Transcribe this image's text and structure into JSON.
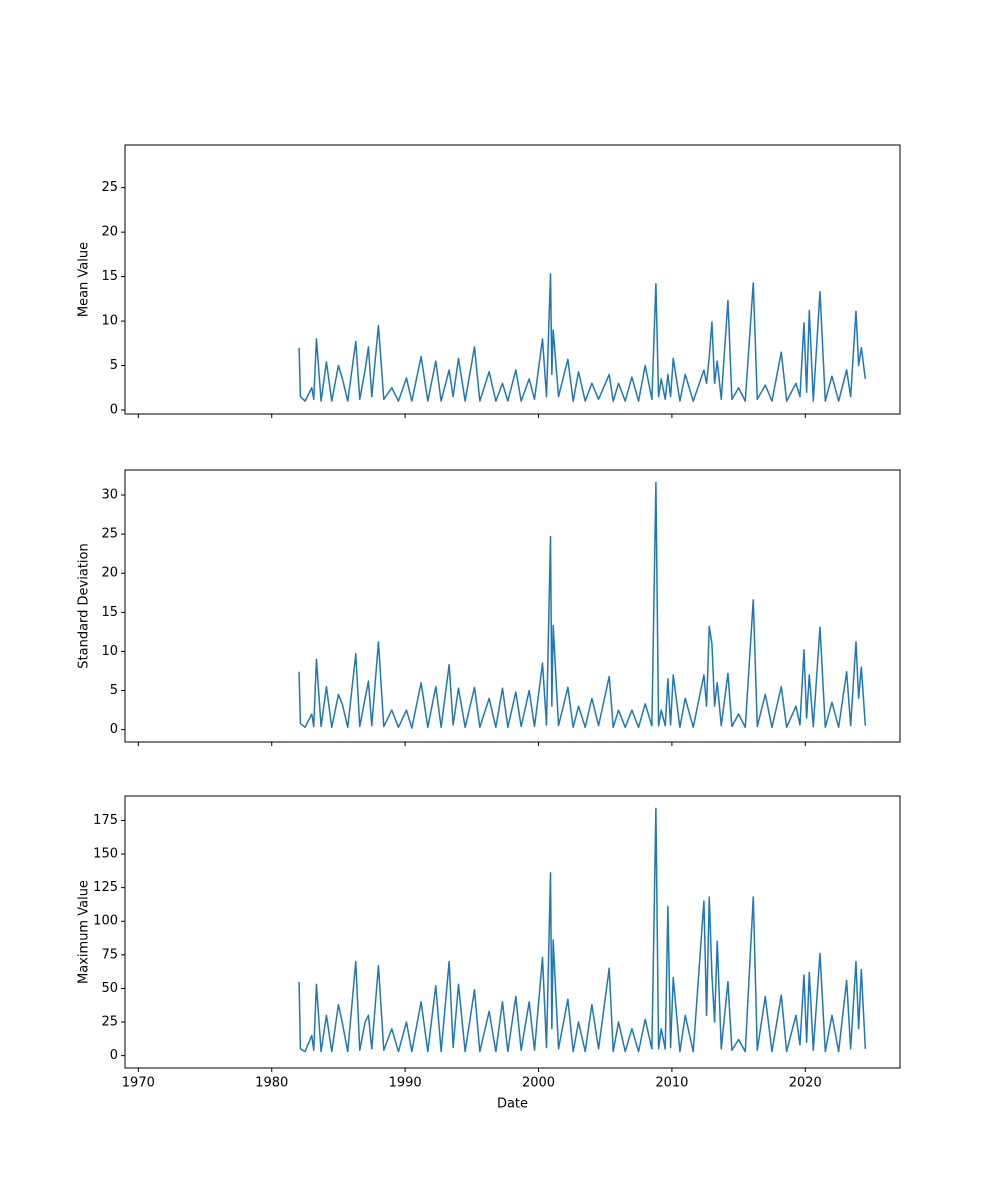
{
  "chart_data": [
    {
      "type": "line",
      "ylabel": "Mean Value",
      "color": "#1f77b4",
      "xlim": [
        1969.0,
        2027.1
      ],
      "xticks": [
        1970,
        1980,
        1990,
        2000,
        2010,
        2020
      ],
      "ylim": [
        -0.45,
        29.8
      ],
      "yticks": [
        0,
        5,
        10,
        15,
        20,
        25
      ],
      "x": [
        1982.05,
        1982.15,
        1982.5,
        1983.0,
        1983.15,
        1983.35,
        1983.7,
        1984.1,
        1984.5,
        1985.0,
        1985.3,
        1985.7,
        1986.3,
        1986.6,
        1987.0,
        1987.25,
        1987.5,
        1988.0,
        1988.4,
        1989.0,
        1989.5,
        1990.1,
        1990.5,
        1991.2,
        1991.7,
        1992.3,
        1992.7,
        1993.3,
        1993.6,
        1994.0,
        1994.5,
        1995.2,
        1995.6,
        1996.3,
        1996.8,
        1997.3,
        1997.7,
        1998.3,
        1998.7,
        1999.3,
        1999.7,
        2000.3,
        2000.6,
        2000.9,
        2001.0,
        2001.1,
        2001.5,
        2002.2,
        2002.6,
        2003.0,
        2003.5,
        2004.0,
        2004.5,
        2005.3,
        2005.6,
        2006.0,
        2006.5,
        2007.0,
        2007.5,
        2008.0,
        2008.5,
        2008.8,
        2009.0,
        2009.2,
        2009.5,
        2009.7,
        2009.9,
        2010.1,
        2010.6,
        2011.0,
        2011.6,
        2012.4,
        2012.6,
        2012.8,
        2013.0,
        2013.2,
        2013.4,
        2013.7,
        2014.2,
        2014.5,
        2015.0,
        2015.5,
        2016.1,
        2016.4,
        2017.0,
        2017.5,
        2018.2,
        2018.6,
        2019.3,
        2019.6,
        2019.9,
        2020.1,
        2020.3,
        2020.6,
        2021.1,
        2021.5,
        2022.0,
        2022.5,
        2023.1,
        2023.4,
        2023.8,
        2024.0,
        2024.2,
        2024.5
      ],
      "values": [
        7.0,
        1.5,
        1.0,
        2.5,
        1.2,
        8.0,
        1.0,
        5.4,
        1.0,
        5.0,
        3.5,
        1.0,
        7.7,
        1.2,
        4.5,
        7.1,
        1.5,
        9.5,
        1.2,
        2.5,
        1.0,
        3.6,
        1.0,
        6.0,
        1.0,
        5.5,
        1.0,
        4.5,
        1.5,
        5.8,
        1.0,
        7.1,
        1.0,
        4.3,
        1.0,
        3.0,
        1.0,
        4.5,
        1.0,
        3.5,
        1.2,
        8.0,
        1.5,
        15.3,
        4.0,
        9.0,
        1.5,
        5.7,
        1.0,
        4.3,
        1.0,
        3.0,
        1.2,
        4.0,
        1.0,
        3.0,
        1.0,
        3.7,
        1.0,
        5.0,
        1.2,
        14.2,
        1.5,
        3.5,
        1.2,
        4.0,
        1.5,
        5.8,
        1.0,
        4.0,
        1.0,
        4.5,
        3.0,
        6.0,
        9.9,
        3.0,
        5.5,
        1.2,
        12.3,
        1.2,
        2.5,
        1.0,
        14.3,
        1.2,
        2.8,
        1.0,
        6.5,
        1.0,
        3.0,
        1.5,
        9.8,
        2.0,
        11.2,
        1.0,
        13.3,
        1.0,
        3.8,
        1.0,
        4.5,
        1.5,
        11.1,
        5.0,
        7.0,
        3.5
      ]
    },
    {
      "type": "line",
      "ylabel": "Standard Deviation",
      "color": "#1f77b4",
      "xlim": [
        1969.0,
        2027.1
      ],
      "xticks": [
        1970,
        1980,
        1990,
        2000,
        2010,
        2020
      ],
      "ylim": [
        -1.58,
        33.2
      ],
      "yticks": [
        0,
        5,
        10,
        15,
        20,
        25,
        30
      ],
      "x": [
        1982.05,
        1982.15,
        1982.5,
        1983.0,
        1983.15,
        1983.35,
        1983.7,
        1984.1,
        1984.5,
        1985.0,
        1985.3,
        1985.7,
        1986.3,
        1986.6,
        1987.0,
        1987.25,
        1987.5,
        1988.0,
        1988.4,
        1989.0,
        1989.5,
        1990.1,
        1990.5,
        1991.2,
        1991.7,
        1992.3,
        1992.7,
        1993.3,
        1993.6,
        1994.0,
        1994.5,
        1995.2,
        1995.6,
        1996.3,
        1996.8,
        1997.3,
        1997.7,
        1998.3,
        1998.7,
        1999.3,
        1999.7,
        2000.3,
        2000.6,
        2000.9,
        2001.0,
        2001.1,
        2001.5,
        2002.2,
        2002.6,
        2003.0,
        2003.5,
        2004.0,
        2004.5,
        2005.3,
        2005.6,
        2006.0,
        2006.5,
        2007.0,
        2007.5,
        2008.0,
        2008.5,
        2008.8,
        2009.0,
        2009.2,
        2009.5,
        2009.7,
        2009.9,
        2010.1,
        2010.6,
        2011.0,
        2011.6,
        2012.4,
        2012.6,
        2012.8,
        2013.0,
        2013.2,
        2013.4,
        2013.7,
        2014.2,
        2014.5,
        2015.0,
        2015.5,
        2016.1,
        2016.4,
        2017.0,
        2017.5,
        2018.2,
        2018.6,
        2019.3,
        2019.6,
        2019.9,
        2020.1,
        2020.3,
        2020.6,
        2021.1,
        2021.5,
        2022.0,
        2022.5,
        2023.1,
        2023.4,
        2023.8,
        2024.0,
        2024.2,
        2024.5
      ],
      "values": [
        7.4,
        0.8,
        0.3,
        2.0,
        0.4,
        9.0,
        0.4,
        5.5,
        0.3,
        4.5,
        3.2,
        0.3,
        9.7,
        0.4,
        4.0,
        6.2,
        0.5,
        11.2,
        0.4,
        2.5,
        0.3,
        2.5,
        0.2,
        6.0,
        0.3,
        5.5,
        0.3,
        8.3,
        0.6,
        5.3,
        0.3,
        5.4,
        0.3,
        4.0,
        0.3,
        5.3,
        0.3,
        4.8,
        0.4,
        5.0,
        0.4,
        8.5,
        0.6,
        24.7,
        3.0,
        13.3,
        0.5,
        5.4,
        0.3,
        3.0,
        0.3,
        4.0,
        0.5,
        6.8,
        0.3,
        2.5,
        0.3,
        2.5,
        0.3,
        3.3,
        0.5,
        31.6,
        0.5,
        2.5,
        0.5,
        6.5,
        0.6,
        7.0,
        0.3,
        4.0,
        0.3,
        7.0,
        3.0,
        13.2,
        11.0,
        3.0,
        6.0,
        0.5,
        7.2,
        0.4,
        2.0,
        0.3,
        16.6,
        0.4,
        4.5,
        0.3,
        5.5,
        0.3,
        3.0,
        0.6,
        10.2,
        1.5,
        7.0,
        0.4,
        13.1,
        0.3,
        3.5,
        0.3,
        7.4,
        0.5,
        11.2,
        4.0,
        8.0,
        0.5
      ]
    },
    {
      "type": "line",
      "ylabel": "Maximum Value",
      "xlabel": "Date",
      "color": "#1f77b4",
      "xlim": [
        1969.0,
        2027.1
      ],
      "xticks": [
        1970,
        1980,
        1990,
        2000,
        2010,
        2020
      ],
      "ylim": [
        -9.2,
        193.2
      ],
      "yticks": [
        0,
        25,
        50,
        75,
        100,
        125,
        150,
        175
      ],
      "x": [
        1982.05,
        1982.15,
        1982.5,
        1983.0,
        1983.15,
        1983.35,
        1983.7,
        1984.1,
        1984.5,
        1985.0,
        1985.3,
        1985.7,
        1986.3,
        1986.6,
        1987.0,
        1987.25,
        1987.5,
        1988.0,
        1988.4,
        1989.0,
        1989.5,
        1990.1,
        1990.5,
        1991.2,
        1991.7,
        1992.3,
        1992.7,
        1993.3,
        1993.6,
        1994.0,
        1994.5,
        1995.2,
        1995.6,
        1996.3,
        1996.8,
        1997.3,
        1997.7,
        1998.3,
        1998.7,
        1999.3,
        1999.7,
        2000.3,
        2000.6,
        2000.9,
        2001.0,
        2001.1,
        2001.5,
        2002.2,
        2002.6,
        2003.0,
        2003.5,
        2004.0,
        2004.5,
        2005.3,
        2005.6,
        2006.0,
        2006.5,
        2007.0,
        2007.5,
        2008.0,
        2008.5,
        2008.8,
        2009.0,
        2009.2,
        2009.5,
        2009.7,
        2009.9,
        2010.1,
        2010.6,
        2011.0,
        2011.6,
        2012.4,
        2012.6,
        2012.8,
        2013.0,
        2013.2,
        2013.4,
        2013.7,
        2014.2,
        2014.5,
        2015.0,
        2015.5,
        2016.1,
        2016.4,
        2017.0,
        2017.5,
        2018.2,
        2018.6,
        2019.3,
        2019.6,
        2019.9,
        2020.1,
        2020.3,
        2020.6,
        2021.1,
        2021.5,
        2022.0,
        2022.5,
        2023.1,
        2023.4,
        2023.8,
        2024.0,
        2024.2,
        2024.5
      ],
      "values": [
        55,
        5,
        3,
        15,
        4,
        53,
        3,
        30,
        3,
        38,
        24,
        3,
        70,
        4,
        25,
        30,
        5,
        67,
        4,
        20,
        3,
        25,
        3,
        40,
        3,
        52,
        3,
        70,
        6,
        53,
        3,
        49,
        3,
        33,
        3,
        40,
        3,
        44,
        4,
        40,
        4,
        73,
        6,
        136,
        20,
        86,
        5,
        42,
        3,
        25,
        3,
        38,
        5,
        65,
        3,
        25,
        3,
        20,
        3,
        27,
        5,
        184,
        5,
        20,
        5,
        111,
        6,
        58,
        3,
        30,
        3,
        115,
        30,
        118,
        60,
        25,
        85,
        5,
        55,
        4,
        12,
        3,
        118,
        4,
        44,
        3,
        45,
        3,
        30,
        8,
        60,
        10,
        62,
        4,
        76,
        3,
        30,
        3,
        56,
        5,
        70,
        20,
        64,
        5
      ]
    }
  ]
}
